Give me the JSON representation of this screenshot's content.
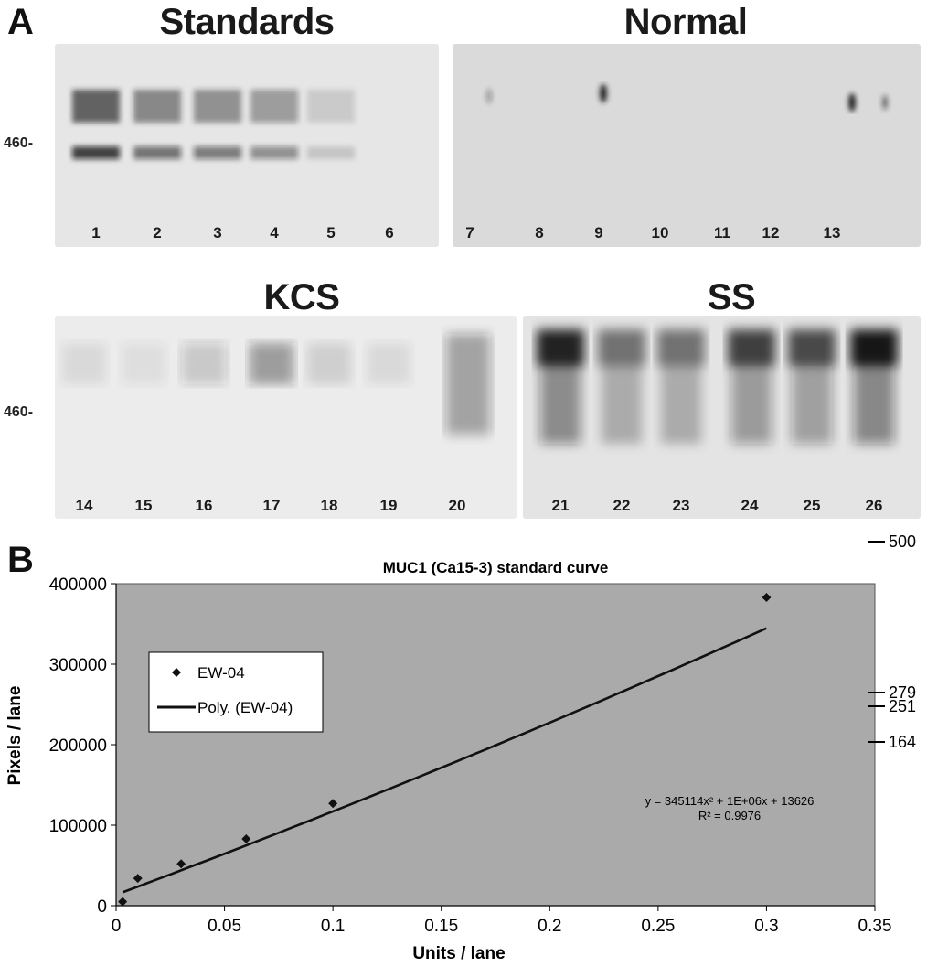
{
  "panel_a": {
    "letter": "A",
    "marker_label": "460-",
    "gels": [
      {
        "title": "Standards",
        "lanes": [
          "1",
          "2",
          "3",
          "4",
          "5",
          "6"
        ]
      },
      {
        "title": "Normal",
        "lanes": [
          "7",
          "8",
          "9",
          "10",
          "11",
          "12",
          "13"
        ]
      },
      {
        "title": "KCS",
        "lanes": [
          "14",
          "15",
          "16",
          "17",
          "18",
          "19",
          "20"
        ]
      },
      {
        "title": "SS",
        "lanes": [
          "21",
          "22",
          "23",
          "24",
          "25",
          "26"
        ]
      }
    ],
    "standard_band_intensity": [
      0.85,
      0.6,
      0.55,
      0.45,
      0.15,
      0.0
    ],
    "ss_band_intensity": [
      0.95,
      0.55,
      0.55,
      0.8,
      0.75,
      1.0
    ],
    "kcs_band_intensity": [
      0.08,
      0.06,
      0.18,
      0.4,
      0.12,
      0.08,
      0.35
    ]
  },
  "panel_b": {
    "letter": "B",
    "side_markers": [
      "500",
      "279",
      "251",
      "164"
    ]
  },
  "chart_data": {
    "type": "scatter",
    "title": "MUC1 (Ca15-3) standard curve",
    "xlabel": "Units / lane",
    "ylabel": "Pixels / lane",
    "xlim": [
      0,
      0.35
    ],
    "ylim": [
      0,
      400000
    ],
    "x_ticks": [
      "0",
      "0.05",
      "0.1",
      "0.15",
      "0.2",
      "0.25",
      "0.3",
      "0.35"
    ],
    "y_ticks": [
      "0",
      "100000",
      "200000",
      "300000",
      "400000"
    ],
    "grid": false,
    "background": "#aaaaaa",
    "series": [
      {
        "name": "EW-04",
        "marker": "diamond",
        "color": "#111111",
        "points": [
          [
            0.003,
            5000
          ],
          [
            0.01,
            34000
          ],
          [
            0.03,
            52000
          ],
          [
            0.06,
            83000
          ],
          [
            0.1,
            127000
          ],
          [
            0.3,
            383000
          ]
        ]
      }
    ],
    "trendline": {
      "name": "Poly. (EW-04)",
      "color": "#111111",
      "a": 345114,
      "b": 1000000,
      "c": 13626,
      "x_range": [
        0.003,
        0.3
      ]
    },
    "equation": "y = 345114x² + 1E+06x + 13626",
    "r_squared": "R² = 0.9976",
    "legend_position": "top-left"
  }
}
